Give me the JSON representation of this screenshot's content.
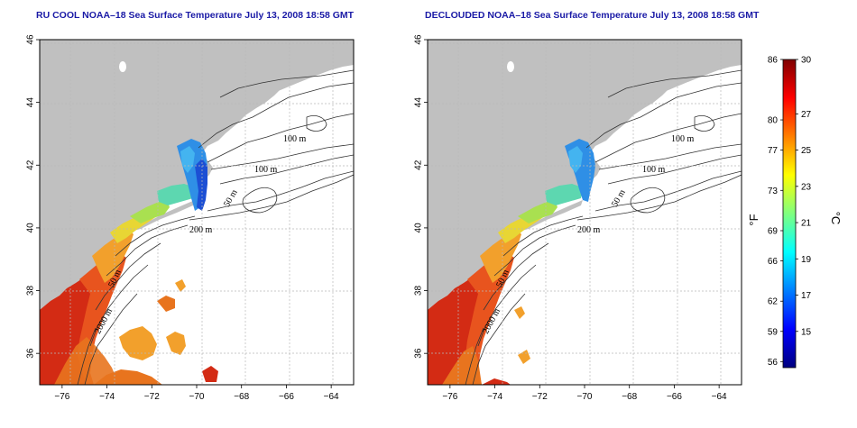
{
  "panels": [
    {
      "title": "RU COOL NOAA–18 Sea Surface Temperature July 13, 2008 18:58 GMT",
      "variant": "raw"
    },
    {
      "title": "DECLOUDED NOAA–18 Sea Surface Temperature July 13, 2008 18:58 GMT",
      "variant": "declouded"
    }
  ],
  "axes": {
    "lon_labels": [
      "−76",
      "−74",
      "−72",
      "−70",
      "−68",
      "−66",
      "−64"
    ],
    "lat_labels": [
      "46",
      "44",
      "42",
      "40",
      "38",
      "36"
    ]
  },
  "contour_labels": {
    "c100a": "100 m",
    "c100b": "100 m",
    "c50a": "50 m",
    "c200": "200 m",
    "c50b": "50 m",
    "c2000": "2000 m"
  },
  "colorbar": {
    "fahrenheit_unit": "°F",
    "celsius_unit": "°C",
    "fahrenheit_ticks": [
      "86",
      "80",
      "77",
      "73",
      "69",
      "66",
      "62",
      "59",
      "56"
    ],
    "celsius_ticks": [
      "30",
      "27",
      "25",
      "23",
      "21",
      "19",
      "17",
      "15"
    ],
    "colors": [
      "#00007f",
      "#0000ff",
      "#007fff",
      "#00ffff",
      "#7fff7f",
      "#ffff00",
      "#ff7f00",
      "#ff0000",
      "#7f0000"
    ]
  },
  "colors": {
    "land": "#c0c0c0",
    "ocean": "#ffffff",
    "title": "#1a1aa6",
    "contour": "#333333",
    "grid": "#b8b8b8"
  }
}
